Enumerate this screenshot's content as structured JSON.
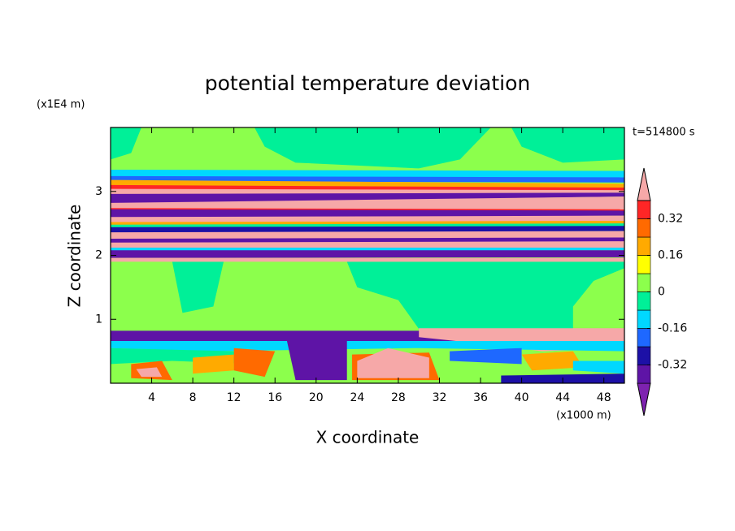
{
  "chart_data": {
    "type": "contour",
    "title": "potential temperature deviation",
    "xlabel": "X coordinate",
    "ylabel": "Z coordinate",
    "x_unit": "(x1000 m)",
    "y_unit": "(x1E4 m)",
    "time_label": "t=514800 s",
    "xlim": [
      0,
      50
    ],
    "ylim": [
      0,
      4
    ],
    "xticks": [
      4,
      8,
      12,
      16,
      20,
      24,
      28,
      32,
      36,
      40,
      44,
      48
    ],
    "yticks": [
      1,
      2,
      3
    ],
    "colorbar": {
      "levels": [
        -0.4,
        -0.32,
        -0.24,
        -0.16,
        -0.08,
        0,
        0.08,
        0.16,
        0.24,
        0.32,
        0.4
      ],
      "colors": [
        "#7e22b0",
        "#5e14a6",
        "#1c10a6",
        "#1e68ff",
        "#00d8ff",
        "#00f098",
        "#8cff4c",
        "#ffff00",
        "#ffaa00",
        "#ff6a00",
        "#ff2626",
        "#f6a8a8"
      ],
      "ticks": [
        0.32,
        0.16,
        0,
        -0.16,
        -0.32
      ]
    }
  }
}
